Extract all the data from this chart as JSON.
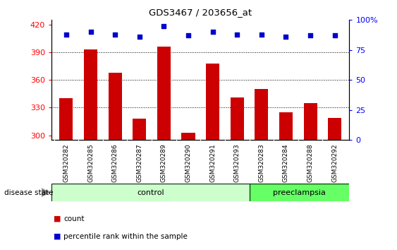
{
  "title": "GDS3467 / 203656_at",
  "samples": [
    "GSM320282",
    "GSM320285",
    "GSM320286",
    "GSM320287",
    "GSM320289",
    "GSM320290",
    "GSM320291",
    "GSM320293",
    "GSM320283",
    "GSM320284",
    "GSM320288",
    "GSM320292"
  ],
  "counts": [
    340,
    393,
    368,
    318,
    396,
    303,
    378,
    341,
    350,
    325,
    335,
    319
  ],
  "percentiles": [
    88,
    90,
    88,
    86,
    95,
    87,
    90,
    88,
    88,
    86,
    87,
    87
  ],
  "groups": [
    "control",
    "control",
    "control",
    "control",
    "control",
    "control",
    "control",
    "control",
    "preeclampsia",
    "preeclampsia",
    "preeclampsia",
    "preeclampsia"
  ],
  "ylim_left": [
    295,
    425
  ],
  "ylim_right": [
    0,
    100
  ],
  "yticks_left": [
    300,
    330,
    360,
    390,
    420
  ],
  "yticks_right": [
    0,
    25,
    50,
    75,
    100
  ],
  "bar_color": "#cc0000",
  "dot_color": "#0000cc",
  "control_color": "#ccffcc",
  "preeclampsia_color": "#66ff66",
  "n_control": 8,
  "n_preeclampsia": 4
}
